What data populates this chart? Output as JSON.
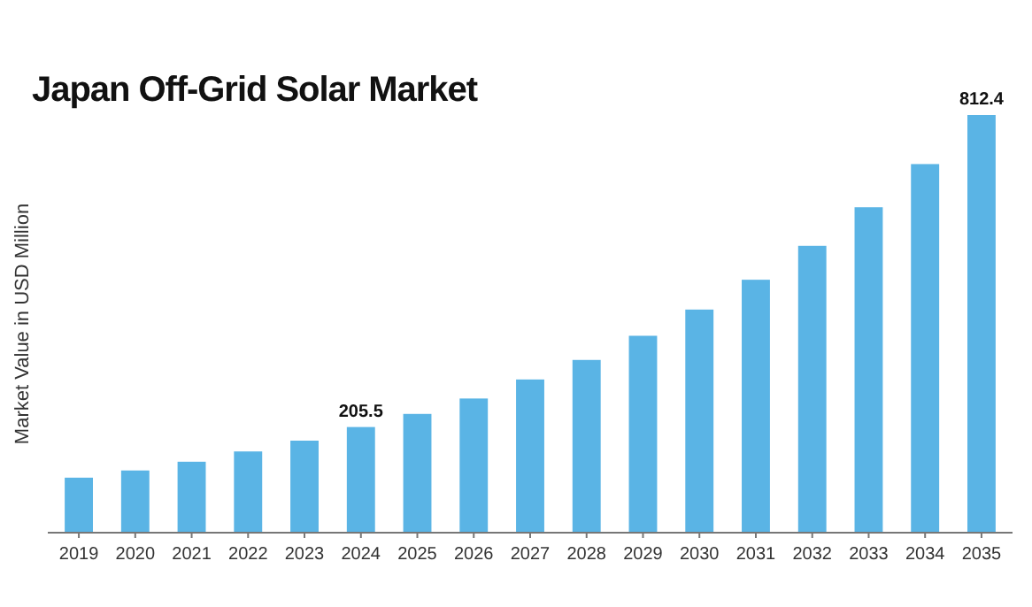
{
  "chart_data": {
    "type": "bar",
    "title": "Japan Off-Grid Solar Market",
    "ylabel": "Market Value in USD Million",
    "categories": [
      "2019",
      "2020",
      "2021",
      "2022",
      "2023",
      "2024",
      "2025",
      "2026",
      "2027",
      "2028",
      "2029",
      "2030",
      "2031",
      "2032",
      "2033",
      "2034",
      "2035"
    ],
    "values": [
      107,
      121,
      138,
      158,
      179,
      205.5,
      231,
      261,
      298,
      336,
      383,
      434,
      492,
      558,
      633,
      717,
      812.4
    ],
    "value_labels": [
      null,
      null,
      null,
      null,
      null,
      "205.5",
      null,
      null,
      null,
      null,
      null,
      null,
      null,
      null,
      null,
      null,
      "812.4"
    ],
    "color": "#5ab4e5",
    "tick_labels": "x"
  }
}
